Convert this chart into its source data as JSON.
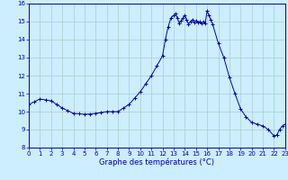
{
  "xlabel": "Graphe des températures (°C)",
  "background_color": "#cceeff",
  "grid_color": "#aacccc",
  "line_color": "#0000aa",
  "marker_color": "#0000aa",
  "ylim": [
    8,
    16
  ],
  "xlim": [
    0,
    23
  ],
  "yticks": [
    8,
    9,
    10,
    11,
    12,
    13,
    14,
    15,
    16
  ],
  "xticks": [
    0,
    1,
    2,
    3,
    4,
    5,
    6,
    7,
    8,
    9,
    10,
    11,
    12,
    13,
    14,
    15,
    16,
    17,
    18,
    19,
    20,
    21,
    22,
    23
  ],
  "hours": [
    0,
    0.5,
    1,
    1.5,
    2,
    2.5,
    3,
    3.5,
    4,
    4.5,
    5,
    5.5,
    6,
    6.5,
    7,
    7.5,
    8,
    8.5,
    9,
    9.5,
    10,
    10.5,
    11,
    11.5,
    12,
    12.25,
    12.5,
    12.75,
    13,
    13.17,
    13.33,
    13.5,
    13.67,
    13.83,
    14,
    14.17,
    14.33,
    14.5,
    14.67,
    14.83,
    15,
    15.17,
    15.33,
    15.5,
    15.67,
    15.83,
    16,
    16.17,
    16.33,
    16.5,
    17,
    17.5,
    18,
    18.5,
    19,
    19.5,
    20,
    20.5,
    21,
    21.5,
    22,
    22.25,
    22.5,
    22.75,
    23
  ],
  "temps": [
    10.4,
    10.55,
    10.7,
    10.65,
    10.6,
    10.4,
    10.2,
    10.05,
    9.9,
    9.88,
    9.85,
    9.87,
    9.9,
    9.95,
    10.0,
    10.0,
    10.0,
    10.2,
    10.4,
    10.75,
    11.1,
    11.55,
    12.0,
    12.55,
    13.1,
    14.0,
    14.7,
    15.2,
    15.35,
    15.45,
    15.2,
    14.9,
    15.05,
    15.2,
    15.35,
    15.1,
    14.85,
    15.0,
    15.1,
    14.95,
    15.05,
    14.95,
    15.0,
    14.9,
    15.0,
    14.9,
    15.6,
    15.35,
    15.1,
    14.85,
    13.8,
    13.0,
    11.9,
    11.0,
    10.15,
    9.7,
    9.4,
    9.3,
    9.2,
    9.0,
    8.65,
    8.7,
    9.0,
    9.2,
    9.3
  ],
  "tick_fontsize": 5,
  "xlabel_fontsize": 6
}
